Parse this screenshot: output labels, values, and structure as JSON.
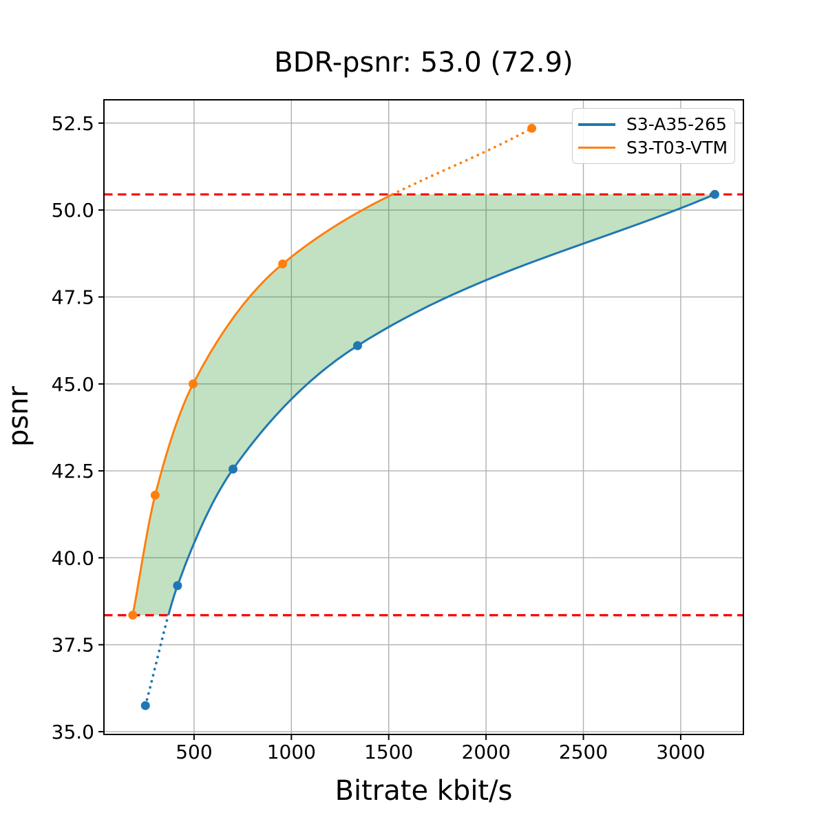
{
  "figure": {
    "title": "BDR-psnr: 53.0 (72.9)"
  },
  "chart_data": {
    "type": "line",
    "title": "BDR-psnr: 53.0 (72.9)",
    "xlabel": "Bitrate kbit/s",
    "ylabel": "psnr",
    "xlim": [
      37,
      3322
    ],
    "ylim": [
      34.92,
      53.17
    ],
    "grid": true,
    "grid_color": "#b0b0b0",
    "legend_position": "upper right",
    "x_ticks": {
      "values": [
        500,
        1000,
        1500,
        2000,
        2500,
        3000
      ],
      "labels": [
        "500",
        "1000",
        "1500",
        "2000",
        "2500",
        "3000"
      ]
    },
    "y_ticks": {
      "values": [
        35.0,
        37.5,
        40.0,
        42.5,
        45.0,
        47.5,
        50.0,
        52.5
      ],
      "labels": [
        "35.0",
        "37.5",
        "40.0",
        "42.5",
        "45.0",
        "47.5",
        "50.0",
        "52.5"
      ]
    },
    "series": [
      {
        "name": "S3-A35-265",
        "color": "#1f77b4",
        "marker": "circle",
        "points": [
          [
            250,
            35.75
          ],
          [
            415,
            39.2
          ],
          [
            700,
            42.55
          ],
          [
            1340,
            46.1
          ],
          [
            3175,
            50.45
          ]
        ],
        "dotted_region": "below_overlap"
      },
      {
        "name": "S3-T03-VTM",
        "color": "#ff7f0e",
        "marker": "circle",
        "points": [
          [
            185,
            38.35
          ],
          [
            300,
            41.8
          ],
          [
            495,
            45.0
          ],
          [
            955,
            48.45
          ],
          [
            2235,
            52.35
          ]
        ],
        "dotted_region": "above_overlap"
      }
    ],
    "overlap_lines": {
      "style": "dashed",
      "color": "#ff0000",
      "upper_psnr": 50.45,
      "lower_psnr": 38.35
    },
    "fill_between": {
      "color": "#008000",
      "opacity": 0.24,
      "psnr_range": [
        38.35,
        50.45
      ]
    }
  }
}
